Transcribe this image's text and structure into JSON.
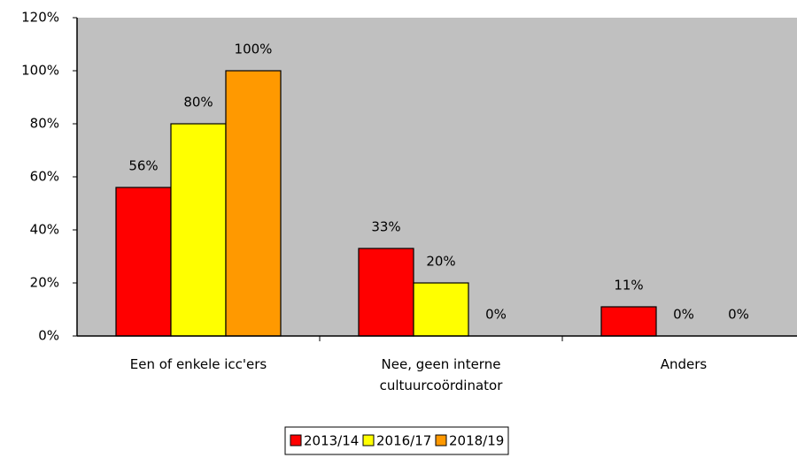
{
  "chart_data": {
    "type": "bar",
    "categories": [
      "Een of enkele  icc'ers",
      "Nee, geen interne cultuurcoördinator",
      "Anders"
    ],
    "series": [
      {
        "name": "2013/14",
        "color": "#ff0000",
        "values": [
          56,
          33,
          11
        ],
        "value_labels": [
          "56%",
          "33%",
          "11%"
        ]
      },
      {
        "name": "2016/17",
        "color": "#ffff00",
        "values": [
          80,
          20,
          0
        ],
        "value_labels": [
          "80%",
          "20%",
          "0%"
        ]
      },
      {
        "name": "2018/19",
        "color": "#ff9900",
        "values": [
          100,
          0,
          0
        ],
        "value_labels": [
          "100%",
          "0%",
          "0%"
        ]
      }
    ],
    "ylim": [
      0,
      120
    ],
    "yticks": [
      {
        "value": 0,
        "label": "0%"
      },
      {
        "value": 20,
        "label": "20%"
      },
      {
        "value": 40,
        "label": "40%"
      },
      {
        "value": 60,
        "label": "60%"
      },
      {
        "value": 80,
        "label": "80%"
      },
      {
        "value": 100,
        "label": "100%"
      },
      {
        "value": 120,
        "label": "120%"
      }
    ],
    "plot_background": "#c0c0c0",
    "legend": "bottom"
  }
}
